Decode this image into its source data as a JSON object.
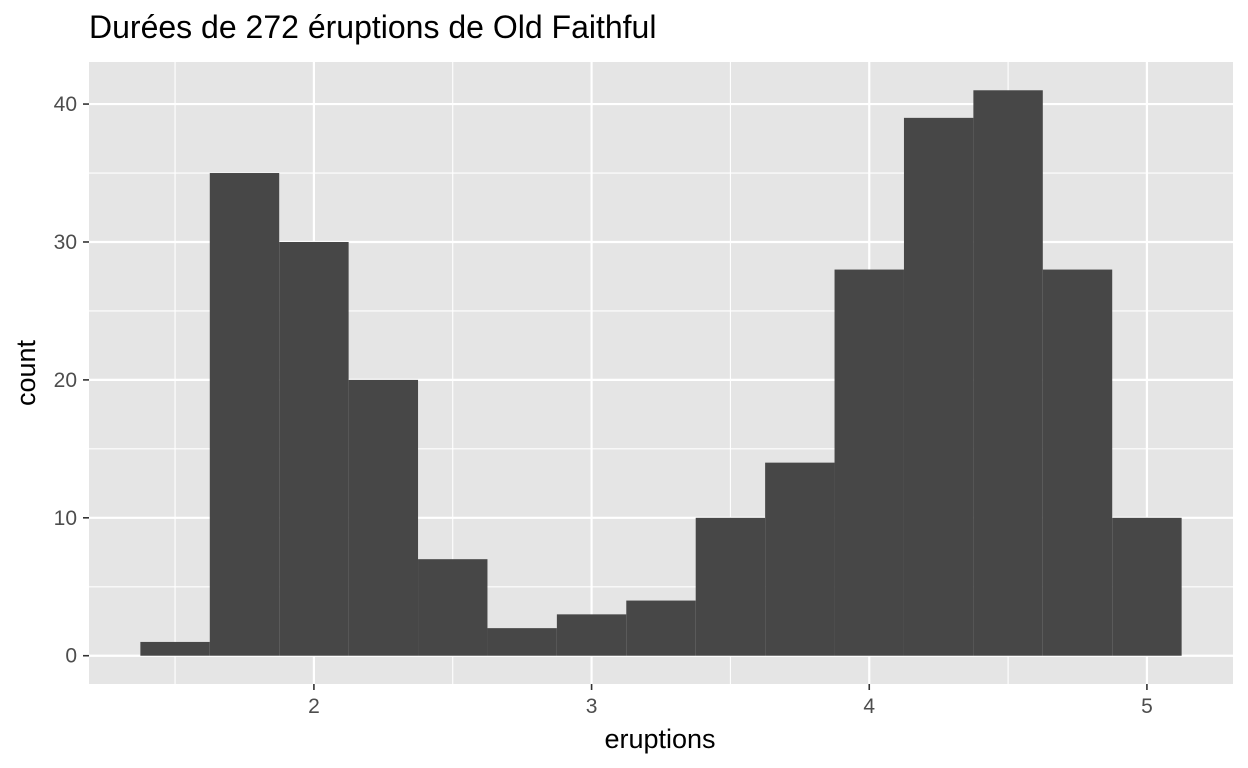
{
  "chart_data": {
    "type": "bar",
    "title": "Durées de 272 éruptions de Old Faithful",
    "xlabel": "eruptions",
    "ylabel": "count",
    "bins": [
      {
        "x0": 1.375,
        "x1": 1.625,
        "count": 1
      },
      {
        "x0": 1.625,
        "x1": 1.875,
        "count": 35
      },
      {
        "x0": 1.875,
        "x1": 2.125,
        "count": 30
      },
      {
        "x0": 2.125,
        "x1": 2.375,
        "count": 20
      },
      {
        "x0": 2.375,
        "x1": 2.625,
        "count": 7
      },
      {
        "x0": 2.625,
        "x1": 2.875,
        "count": 2
      },
      {
        "x0": 2.875,
        "x1": 3.125,
        "count": 3
      },
      {
        "x0": 3.125,
        "x1": 3.375,
        "count": 4
      },
      {
        "x0": 3.375,
        "x1": 3.625,
        "count": 10
      },
      {
        "x0": 3.625,
        "x1": 3.875,
        "count": 14
      },
      {
        "x0": 3.875,
        "x1": 4.125,
        "count": 28
      },
      {
        "x0": 4.125,
        "x1": 4.375,
        "count": 39
      },
      {
        "x0": 4.375,
        "x1": 4.625,
        "count": 41
      },
      {
        "x0": 4.625,
        "x1": 4.875,
        "count": 28
      },
      {
        "x0": 4.875,
        "x1": 5.125,
        "count": 10
      }
    ],
    "xlim": [
      1.19,
      5.31
    ],
    "ylim": [
      -2.05,
      43.05
    ],
    "x_ticks": [
      {
        "value": 2,
        "label": "2"
      },
      {
        "value": 3,
        "label": "3"
      },
      {
        "value": 4,
        "label": "4"
      },
      {
        "value": 5,
        "label": "5"
      }
    ],
    "y_ticks": [
      {
        "value": 0,
        "label": "0"
      },
      {
        "value": 10,
        "label": "10"
      },
      {
        "value": 20,
        "label": "20"
      },
      {
        "value": 30,
        "label": "30"
      },
      {
        "value": 40,
        "label": "40"
      }
    ],
    "x_minor": [
      1.5,
      2.5,
      3.5,
      4.5
    ],
    "y_minor": [
      5,
      15,
      25,
      35
    ],
    "grid": true,
    "legend": "none",
    "colors": {
      "panel_bg": "#e5e5e5",
      "grid": "#ffffff",
      "bar_fill": "#474747",
      "tick_text": "#4d4d4d",
      "tick_mark": "#333333"
    }
  }
}
